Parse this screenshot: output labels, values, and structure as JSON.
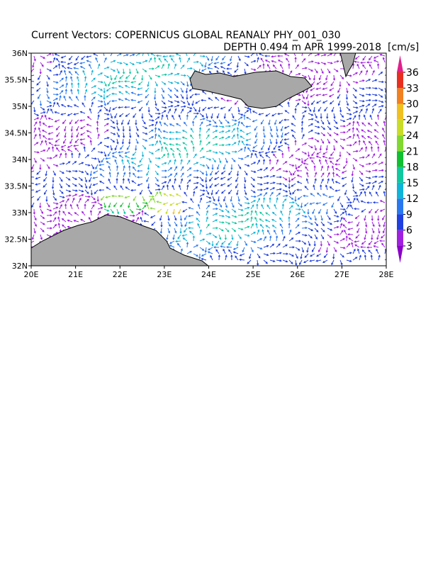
{
  "title": "Current Vectors: COPERNICUS GLOBAL REANALY PHY_001_030",
  "subtitle": "DEPTH 0.494 m  APR 1999-2018",
  "map": {
    "xlim": [
      20,
      28
    ],
    "ylim": [
      32,
      36
    ],
    "xticks": [
      {
        "value": 20,
        "label": "20E"
      },
      {
        "value": 21,
        "label": "21E"
      },
      {
        "value": 22,
        "label": "22E"
      },
      {
        "value": 23,
        "label": "23E"
      },
      {
        "value": 24,
        "label": "24E"
      },
      {
        "value": 25,
        "label": "25E"
      },
      {
        "value": 26,
        "label": "26E"
      },
      {
        "value": 27,
        "label": "27E"
      },
      {
        "value": 28,
        "label": "28E"
      }
    ],
    "yticks": [
      {
        "value": 32,
        "label": "32N"
      },
      {
        "value": 32.5,
        "label": "32.5N"
      },
      {
        "value": 33,
        "label": "33N"
      },
      {
        "value": 33.5,
        "label": "33.5N"
      },
      {
        "value": 34,
        "label": "34N"
      },
      {
        "value": 34.5,
        "label": "34.5N"
      },
      {
        "value": 35,
        "label": "35N"
      },
      {
        "value": 35.5,
        "label": "35.5N"
      },
      {
        "value": 36,
        "label": "36N"
      }
    ],
    "land_color": "#a8a8a8"
  },
  "colorbar": {
    "label": "[cm/s]",
    "ticks": [
      3,
      6,
      9,
      12,
      15,
      18,
      21,
      24,
      27,
      30,
      33,
      36
    ],
    "colors": [
      "#8a00c8",
      "#a020e0",
      "#2040e0",
      "#2a78f0",
      "#10b4d8",
      "#10c8a0",
      "#10c030",
      "#80d830",
      "#c8dc28",
      "#f0c020",
      "#f08020",
      "#e83020",
      "#e0208c"
    ]
  }
}
